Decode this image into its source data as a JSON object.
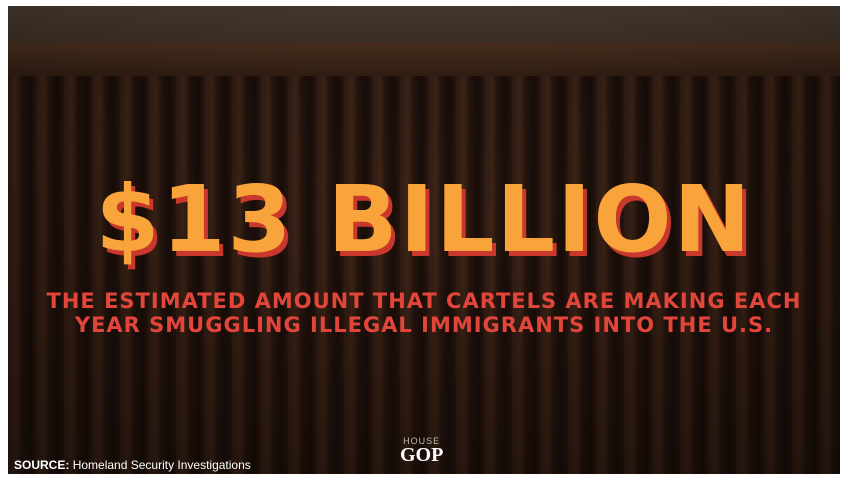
{
  "headline": "$13 BILLION",
  "subheadline": [
    "THE ESTIMATED AMOUNT THAT CARTELS ARE MAKING EACH",
    "YEAR SMUGGLING ILLEGAL IMMIGRANTS INTO THE U.S."
  ],
  "source": {
    "label": "SOURCE:",
    "text": "Homeland Security Investigations"
  },
  "logo": {
    "top": "HOUSE",
    "bottom": "GOP"
  }
}
